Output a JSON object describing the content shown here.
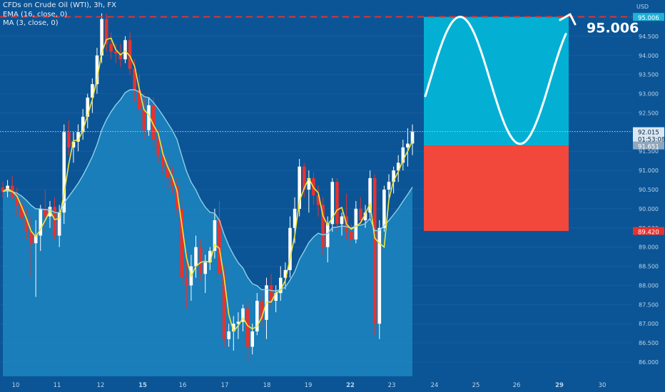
{
  "legend": {
    "title": "CFDs on Crude Oil (WTI), 3h, FX",
    "ema": "EMA (16, close, 0)",
    "ma": "MA (3, close, 0)"
  },
  "chart_data": {
    "type": "candlestick",
    "currency": "USD",
    "ylim": [
      85.7,
      95.2
    ],
    "y_ticks": [
      "95.000",
      "94.500",
      "94.000",
      "93.500",
      "93.000",
      "92.500",
      "92.000",
      "91.500",
      "91.000",
      "90.500",
      "90.000",
      "89.500",
      "89.000",
      "88.500",
      "88.000",
      "87.500",
      "87.000",
      "86.500",
      "86.000"
    ],
    "x_ticks": [
      "10",
      "11",
      "12",
      "15",
      "16",
      "17",
      "18",
      "19",
      "22",
      "23",
      "24",
      "25",
      "26",
      "29",
      "30"
    ],
    "x_ticks_bold": [
      "15",
      "22",
      "29"
    ],
    "price_labels": {
      "target": "95.006",
      "current": "92.015",
      "countdown": "01:53:08",
      "entry": "91.651",
      "stop": "89.420"
    },
    "annotation": "95.006",
    "target": 95.006,
    "current": 92.015,
    "entry": 91.651,
    "stop": 89.42,
    "candles": [
      [
        90.55,
        90.7,
        90.3,
        90.45
      ],
      [
        90.45,
        90.75,
        90.3,
        90.6
      ],
      [
        90.6,
        90.85,
        90.25,
        90.3
      ],
      [
        90.3,
        90.55,
        89.8,
        90.1
      ],
      [
        90.1,
        90.3,
        89.6,
        89.75
      ],
      [
        89.75,
        90.0,
        89.2,
        89.4
      ],
      [
        89.4,
        89.8,
        88.2,
        89.1
      ],
      [
        89.1,
        89.7,
        87.7,
        89.3
      ],
      [
        89.3,
        90.1,
        88.9,
        90.0
      ],
      [
        90.0,
        90.5,
        89.4,
        89.8
      ],
      [
        89.8,
        90.2,
        89.5,
        90.05
      ],
      [
        90.05,
        90.3,
        89.2,
        89.3
      ],
      [
        89.3,
        90.1,
        89.0,
        89.9
      ],
      [
        89.9,
        92.2,
        89.6,
        92.0
      ],
      [
        92.0,
        92.3,
        91.4,
        91.6
      ],
      [
        91.6,
        92.0,
        91.2,
        91.75
      ],
      [
        91.75,
        92.2,
        91.5,
        92.0
      ],
      [
        92.0,
        92.6,
        91.8,
        92.4
      ],
      [
        92.4,
        93.0,
        92.1,
        92.9
      ],
      [
        92.9,
        93.4,
        92.5,
        93.25
      ],
      [
        93.25,
        94.2,
        93.0,
        94.0
      ],
      [
        94.0,
        95.1,
        93.8,
        94.95
      ],
      [
        94.95,
        95.1,
        94.1,
        94.3
      ],
      [
        94.3,
        94.6,
        93.9,
        94.1
      ],
      [
        94.1,
        94.3,
        93.8,
        94.05
      ],
      [
        94.05,
        94.3,
        93.7,
        93.9
      ],
      [
        93.9,
        94.5,
        93.8,
        94.4
      ],
      [
        94.4,
        94.6,
        93.5,
        93.65
      ],
      [
        93.65,
        93.9,
        92.8,
        93.1
      ],
      [
        93.1,
        93.5,
        92.4,
        92.6
      ],
      [
        92.6,
        93.0,
        91.8,
        92.05
      ],
      [
        92.05,
        92.9,
        91.9,
        92.7
      ],
      [
        92.7,
        92.9,
        91.6,
        91.8
      ],
      [
        91.8,
        92.1,
        91.2,
        91.4
      ],
      [
        91.4,
        91.7,
        90.9,
        91.1
      ],
      [
        91.1,
        91.4,
        90.5,
        90.8
      ],
      [
        90.8,
        91.1,
        90.4,
        90.6
      ],
      [
        90.6,
        90.8,
        89.8,
        90.0
      ],
      [
        90.0,
        90.3,
        88.0,
        88.2
      ],
      [
        88.2,
        88.9,
        87.4,
        88.0
      ],
      [
        88.0,
        88.8,
        87.6,
        88.5
      ],
      [
        88.5,
        89.3,
        88.2,
        89.0
      ],
      [
        89.0,
        89.2,
        88.1,
        88.3
      ],
      [
        88.3,
        88.8,
        87.8,
        88.6
      ],
      [
        88.6,
        89.0,
        88.4,
        88.9
      ],
      [
        88.9,
        90.0,
        88.7,
        89.7
      ],
      [
        89.7,
        90.2,
        88.0,
        88.3
      ],
      [
        88.3,
        88.5,
        86.4,
        86.6
      ],
      [
        86.6,
        87.0,
        86.4,
        86.8
      ],
      [
        86.8,
        87.2,
        86.3,
        87.0
      ],
      [
        87.0,
        87.3,
        86.6,
        87.05
      ],
      [
        87.05,
        87.5,
        86.8,
        87.4
      ],
      [
        87.4,
        87.6,
        86.0,
        86.4
      ],
      [
        86.4,
        87.0,
        86.2,
        86.8
      ],
      [
        86.8,
        87.8,
        86.7,
        87.6
      ],
      [
        87.6,
        87.9,
        86.9,
        87.1
      ],
      [
        87.1,
        88.2,
        86.6,
        88.0
      ],
      [
        88.0,
        88.3,
        87.4,
        87.6
      ],
      [
        87.6,
        88.0,
        87.3,
        87.8
      ],
      [
        87.8,
        88.5,
        87.6,
        88.2
      ],
      [
        88.2,
        88.6,
        87.9,
        88.4
      ],
      [
        88.4,
        89.8,
        88.2,
        89.5
      ],
      [
        89.5,
        90.3,
        89.1,
        90.0
      ],
      [
        90.0,
        91.3,
        89.8,
        91.1
      ],
      [
        91.1,
        91.2,
        90.3,
        90.5
      ],
      [
        90.5,
        91.0,
        89.9,
        90.8
      ],
      [
        90.8,
        90.95,
        90.1,
        90.35
      ],
      [
        90.35,
        90.6,
        89.8,
        90.1
      ],
      [
        90.1,
        90.3,
        88.8,
        89.0
      ],
      [
        89.0,
        89.8,
        88.6,
        89.6
      ],
      [
        89.6,
        90.8,
        89.4,
        90.7
      ],
      [
        90.7,
        90.8,
        89.4,
        89.6
      ],
      [
        89.6,
        89.9,
        89.3,
        89.8
      ],
      [
        89.8,
        90.4,
        89.2,
        89.4
      ],
      [
        89.4,
        89.6,
        89.0,
        89.2
      ],
      [
        89.2,
        90.2,
        89.1,
        90.0
      ],
      [
        90.0,
        90.3,
        89.6,
        89.7
      ],
      [
        89.7,
        90.1,
        89.5,
        89.9
      ],
      [
        89.9,
        91.0,
        89.7,
        90.8
      ],
      [
        90.8,
        90.9,
        86.7,
        87.0
      ],
      [
        87.0,
        89.7,
        86.6,
        89.5
      ],
      [
        89.5,
        90.6,
        89.4,
        90.5
      ],
      [
        90.5,
        90.9,
        90.2,
        90.7
      ],
      [
        90.7,
        91.1,
        90.4,
        91.0
      ],
      [
        91.0,
        91.4,
        90.7,
        91.2
      ],
      [
        91.2,
        91.8,
        91.0,
        91.6
      ],
      [
        91.6,
        92.1,
        91.1,
        91.7
      ],
      [
        91.7,
        92.2,
        91.4,
        92.015
      ]
    ]
  }
}
